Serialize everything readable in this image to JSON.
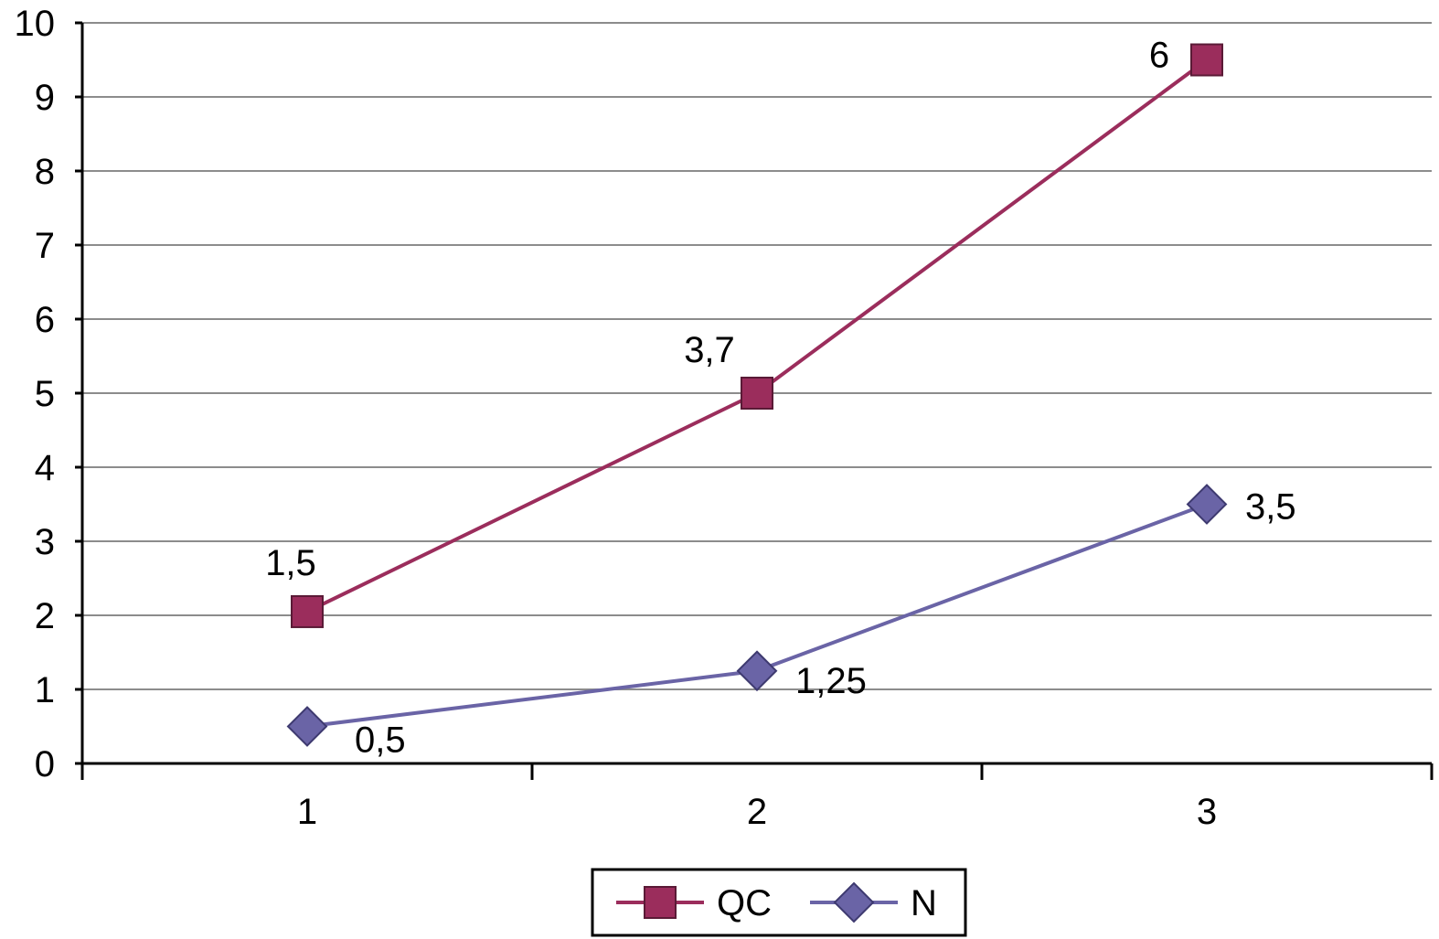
{
  "chart_data": {
    "type": "line",
    "title": "",
    "xlabel": "",
    "ylabel": "",
    "categories": [
      "1",
      "2",
      "3"
    ],
    "x": [
      1,
      2,
      3
    ],
    "ylim": [
      0,
      10
    ],
    "y_ticks": [
      "0",
      "1",
      "2",
      "3",
      "4",
      "5",
      "6",
      "7",
      "8",
      "9",
      "10"
    ],
    "grid": true,
    "legend": "bottom",
    "series": [
      {
        "name": "QC",
        "values": [
          2.05,
          5.0,
          9.5
        ],
        "labels": [
          "1,5",
          "3,7",
          "6"
        ],
        "marker": "square",
        "color": "#9B2D5C"
      },
      {
        "name": "N",
        "values": [
          0.5,
          1.25,
          3.5
        ],
        "labels": [
          "0,5",
          "1,25",
          "3,5"
        ],
        "marker": "diamond",
        "color": "#6A64A6"
      }
    ]
  }
}
